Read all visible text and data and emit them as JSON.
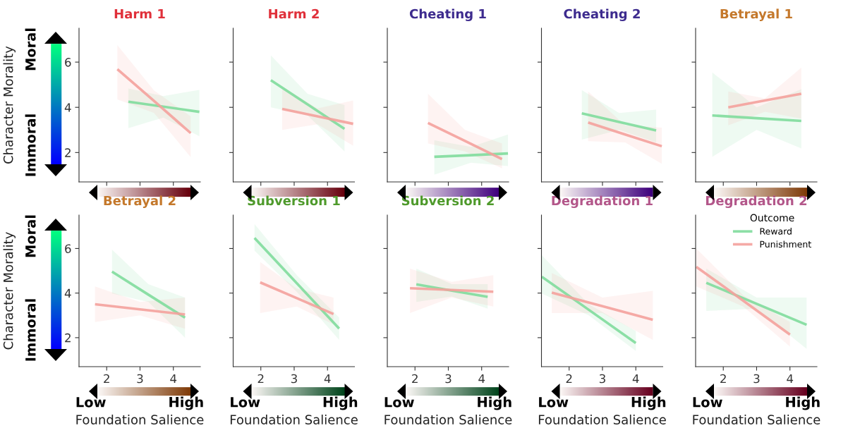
{
  "chart_data": [
    {
      "type": "line",
      "title": "Harm 1",
      "ylabel": "Character Morality",
      "annotations": [
        "Moral",
        "Immoral"
      ],
      "xlim": [
        1.17,
        4.81
      ],
      "ylim": [
        0.7,
        7.5
      ],
      "xticks": [
        2,
        3,
        4
      ],
      "yticks": [
        2,
        4,
        6
      ],
      "tick_labels": "y",
      "grid": false,
      "series": [
        {
          "color": "#7fdc9c",
          "x": [
            2.65,
            3.7,
            4.78
          ],
          "values": [
            4.25,
            4.03,
            3.8
          ],
          "lower": [
            3.08,
            3.55,
            2.72
          ],
          "upper": [
            4.83,
            4.5,
            4.77
          ]
        },
        {
          "color": "#f4a19c",
          "x": [
            2.32,
            3.42,
            4.52
          ],
          "values": [
            5.69,
            4.28,
            2.86
          ],
          "lower": [
            4.35,
            3.75,
            1.8
          ],
          "upper": [
            6.75,
            4.75,
            3.6
          ]
        }
      ]
    },
    {
      "type": "line",
      "title": "Harm 2",
      "xlim": [
        1.17,
        4.81
      ],
      "ylim": [
        0.7,
        7.5
      ],
      "xticks": [
        2,
        3,
        4
      ],
      "yticks": [
        2,
        4,
        6
      ],
      "tick_labels": false,
      "grid": false,
      "series": [
        {
          "color": "#7fdc9c",
          "x": [
            2.3,
            3.4,
            4.51
          ],
          "values": [
            5.2,
            4.13,
            3.05
          ],
          "lower": [
            4.0,
            3.65,
            2.05
          ],
          "upper": [
            6.3,
            4.6,
            4.1
          ]
        },
        {
          "color": "#f4a19c",
          "x": [
            2.64,
            3.7,
            4.77
          ],
          "values": [
            3.93,
            3.6,
            3.27
          ],
          "lower": [
            3.0,
            3.25,
            2.3
          ],
          "upper": [
            4.9,
            3.95,
            4.3
          ]
        }
      ]
    },
    {
      "type": "line",
      "title": "Cheating 1",
      "xlim": [
        1.17,
        4.81
      ],
      "ylim": [
        0.7,
        7.5
      ],
      "xticks": [
        2,
        3,
        4
      ],
      "yticks": [
        2,
        4,
        6
      ],
      "tick_labels": false,
      "grid": false,
      "series": [
        {
          "color": "#7fdc9c",
          "x": [
            2.58,
            3.68,
            4.79
          ],
          "values": [
            1.81,
            1.88,
            1.96
          ],
          "lower": [
            1.02,
            1.55,
            1.4
          ],
          "upper": [
            2.54,
            2.25,
            2.8
          ]
        },
        {
          "color": "#f4a19c",
          "x": [
            2.39,
            3.5,
            4.61
          ],
          "values": [
            3.31,
            2.51,
            1.71
          ],
          "lower": [
            2.4,
            2.05,
            1.3
          ],
          "upper": [
            4.6,
            3.0,
            2.4
          ]
        }
      ]
    },
    {
      "type": "line",
      "title": "Cheating 2",
      "xlim": [
        1.17,
        4.81
      ],
      "ylim": [
        0.7,
        7.5
      ],
      "xticks": [
        2,
        3,
        4
      ],
      "yticks": [
        2,
        4,
        6
      ],
      "tick_labels": false,
      "grid": false,
      "series": [
        {
          "color": "#7fdc9c",
          "x": [
            2.38,
            3.5,
            4.61
          ],
          "values": [
            3.73,
            3.35,
            2.98
          ],
          "lower": [
            2.57,
            3.0,
            2.45
          ],
          "upper": [
            4.76,
            3.75,
            3.9
          ]
        },
        {
          "color": "#f4a19c",
          "x": [
            2.57,
            3.68,
            4.78
          ],
          "values": [
            3.33,
            2.8,
            2.28
          ],
          "lower": [
            2.5,
            2.45,
            1.5
          ],
          "upper": [
            4.7,
            3.2,
            3.1
          ]
        }
      ]
    },
    {
      "type": "line",
      "title": "Betrayal 1",
      "xlim": [
        1.17,
        4.81
      ],
      "ylim": [
        0.7,
        7.5
      ],
      "xticks": [
        2,
        3,
        4
      ],
      "yticks": [
        2,
        4,
        6
      ],
      "tick_labels": false,
      "grid": false,
      "series": [
        {
          "color": "#7fdc9c",
          "x": [
            1.67,
            3.0,
            4.34
          ],
          "values": [
            3.64,
            3.52,
            3.4
          ],
          "lower": [
            1.81,
            3.0,
            2.18
          ],
          "upper": [
            5.54,
            4.0,
            4.8
          ]
        },
        {
          "color": "#f4a19c",
          "x": [
            2.15,
            3.25,
            4.34
          ],
          "values": [
            4.0,
            4.3,
            4.6
          ],
          "lower": [
            3.2,
            3.8,
            3.5
          ],
          "upper": [
            4.7,
            4.4,
            5.75
          ]
        }
      ]
    },
    {
      "type": "line",
      "title": "Betrayal 2",
      "ylabel": "Character Morality",
      "xlabel": "Foundation Salience",
      "annotations": [
        "Moral",
        "Immoral",
        "Low",
        "High"
      ],
      "xlim": [
        1.17,
        4.81
      ],
      "ylim": [
        0.7,
        7.5
      ],
      "xticks": [
        2,
        3,
        4
      ],
      "yticks": [
        2,
        4,
        6
      ],
      "grid": false,
      "series": [
        {
          "color": "#7fdc9c",
          "x": [
            2.16,
            3.25,
            4.35
          ],
          "values": [
            4.96,
            3.93,
            2.9
          ],
          "lower": [
            3.98,
            3.6,
            2.0
          ],
          "upper": [
            5.95,
            4.4,
            3.8
          ]
        },
        {
          "color": "#f4a19c",
          "x": [
            1.65,
            3.0,
            4.35
          ],
          "values": [
            3.5,
            3.27,
            3.04
          ],
          "lower": [
            2.7,
            3.0,
            2.4
          ],
          "upper": [
            4.3,
            3.6,
            3.8
          ]
        }
      ]
    },
    {
      "type": "line",
      "title": "Subversion 1",
      "xlabel": "Foundation Salience",
      "annotations": [
        "Low",
        "High"
      ],
      "xlim": [
        1.17,
        4.81
      ],
      "ylim": [
        0.7,
        7.5
      ],
      "xticks": [
        2,
        3,
        4
      ],
      "yticks": [
        2,
        4,
        6
      ],
      "tick_labels": "x",
      "grid": false,
      "series": [
        {
          "color": "#7fdc9c",
          "x": [
            1.81,
            3.08,
            4.35
          ],
          "values": [
            6.47,
            4.44,
            2.41
          ],
          "lower": [
            5.9,
            4.05,
            1.9
          ],
          "upper": [
            7.1,
            4.8,
            2.9
          ]
        },
        {
          "color": "#f4a19c",
          "x": [
            1.98,
            3.08,
            4.18
          ],
          "values": [
            4.48,
            3.77,
            3.06
          ],
          "lower": [
            3.1,
            3.4,
            2.6
          ],
          "upper": [
            5.4,
            4.2,
            3.8
          ]
        }
      ]
    },
    {
      "type": "line",
      "title": "Subversion 2",
      "xlabel": "Foundation Salience",
      "annotations": [
        "Low",
        "High"
      ],
      "xlim": [
        1.17,
        4.81
      ],
      "ylim": [
        0.7,
        7.5
      ],
      "xticks": [
        2,
        3,
        4
      ],
      "yticks": [
        2,
        4,
        6
      ],
      "tick_labels": "x",
      "grid": false,
      "series": [
        {
          "color": "#7fdc9c",
          "x": [
            2.04,
            3.11,
            4.18
          ],
          "values": [
            4.39,
            4.11,
            3.83
          ],
          "lower": [
            3.6,
            3.85,
            3.3
          ],
          "upper": [
            5.1,
            4.4,
            4.4
          ]
        },
        {
          "color": "#f4a19c",
          "x": [
            1.85,
            3.1,
            4.35
          ],
          "values": [
            4.22,
            4.14,
            4.06
          ],
          "lower": [
            3.1,
            3.8,
            3.4
          ],
          "upper": [
            5.1,
            4.5,
            4.8
          ]
        }
      ]
    },
    {
      "type": "line",
      "title": "Degradation 1",
      "xlabel": "Foundation Salience",
      "annotations": [
        "Low",
        "High"
      ],
      "xlim": [
        1.17,
        4.81
      ],
      "ylim": [
        0.7,
        7.5
      ],
      "xticks": [
        2,
        3,
        4
      ],
      "yticks": [
        2,
        4,
        6
      ],
      "tick_labels": "x",
      "grid": false,
      "series": [
        {
          "color": "#7fdc9c",
          "x": [
            1.18,
            2.59,
            4.0
          ],
          "values": [
            4.73,
            3.25,
            1.76
          ],
          "lower": [
            3.98,
            3.0,
            1.4
          ],
          "upper": [
            5.7,
            3.5,
            2.3
          ]
        },
        {
          "color": "#f4a19c",
          "x": [
            1.48,
            3.0,
            4.51
          ],
          "values": [
            4.02,
            3.41,
            2.8
          ],
          "lower": [
            3.1,
            3.1,
            1.9
          ],
          "upper": [
            4.9,
            3.8,
            4.1
          ]
        }
      ]
    },
    {
      "type": "line",
      "title": "Degradation 2",
      "xlabel": "Foundation Salience",
      "annotations": [
        "Low",
        "High"
      ],
      "legend_title": "Outcome",
      "legend": "top right",
      "xlim": [
        1.17,
        4.81
      ],
      "ylim": [
        0.7,
        7.5
      ],
      "xticks": [
        2,
        3,
        4
      ],
      "yticks": [
        2,
        4,
        6
      ],
      "tick_labels": "x",
      "grid": false,
      "series": [
        {
          "name": "Reward",
          "color": "#7fdc9c",
          "x": [
            1.49,
            3.0,
            4.5
          ],
          "values": [
            4.46,
            3.52,
            2.58
          ],
          "lower": [
            3.2,
            3.3,
            1.5
          ],
          "upper": [
            5.1,
            3.8,
            3.8
          ]
        },
        {
          "name": "Punishment",
          "color": "#f4a19c",
          "x": [
            1.19,
            2.6,
            4.0
          ],
          "values": [
            5.18,
            3.66,
            2.14
          ],
          "lower": [
            4.3,
            3.4,
            1.6
          ],
          "upper": [
            6.0,
            3.9,
            2.7
          ]
        }
      ]
    }
  ]
}
